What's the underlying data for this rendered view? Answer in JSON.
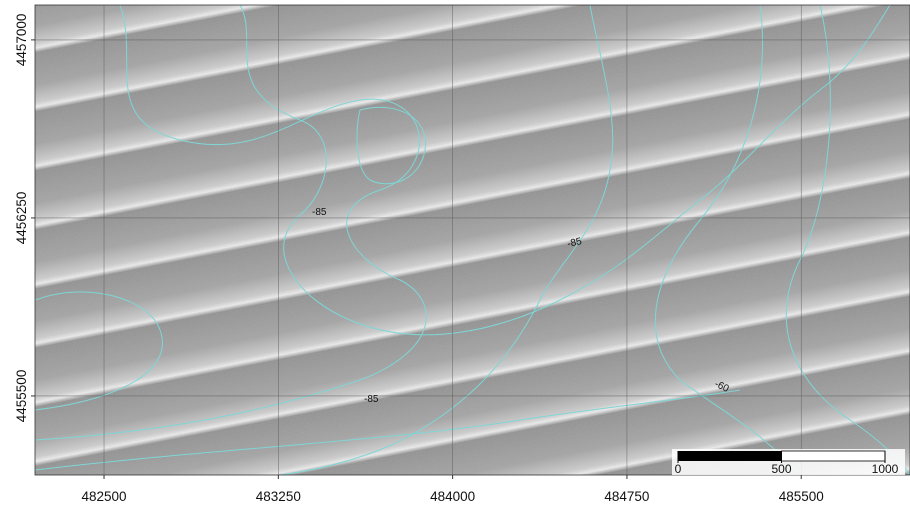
{
  "map": {
    "xlim": [
      482203,
      485968
    ],
    "ylim": [
      4455167,
      4457147
    ],
    "xticks": [
      482500,
      483250,
      484000,
      484750,
      485500
    ],
    "yticks": [
      4455500,
      4456250,
      4457000
    ],
    "contour_labels": [
      -85,
      -85,
      -85,
      -60
    ],
    "scale_bar": {
      "lim": [
        0,
        1000
      ],
      "ticks": [
        0,
        500,
        1000
      ]
    }
  }
}
